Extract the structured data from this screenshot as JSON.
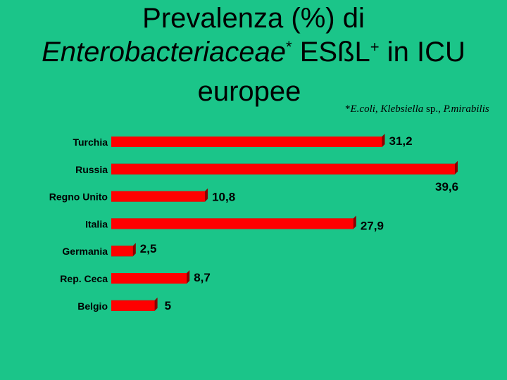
{
  "title": {
    "line1": "Prevalenza (%) di",
    "line2_italic": "Enterobacteriaceae",
    "line2_star": "*",
    "line2_rest": " ESßL",
    "line2_plus": "+",
    "line2_end": " in ICU",
    "line3": "europee"
  },
  "footnote": {
    "star": "*",
    "text1": "E.coli",
    "text2": ", ",
    "text3": "Klebsiella",
    "text4": " sp.",
    "text5": ", ",
    "text6": "P.mirabilis"
  },
  "colors": {
    "bar": "#ff0000",
    "bar_dark": "#8b0000",
    "background": "#1bc589"
  },
  "chart_data": {
    "type": "bar",
    "orientation": "horizontal",
    "categories": [
      "Turchia",
      "Russia",
      "Regno Unito",
      "Italia",
      "Germania",
      "Rep. Ceca",
      "Belgio"
    ],
    "values": [
      31.2,
      39.6,
      10.8,
      27.9,
      2.5,
      8.7,
      5
    ],
    "value_labels": [
      "31,2",
      "39,6",
      "10,8",
      "27,9",
      "2,5",
      "8,7",
      "5"
    ],
    "xlim": [
      0,
      39.6
    ],
    "grid": false,
    "legend": "none"
  }
}
